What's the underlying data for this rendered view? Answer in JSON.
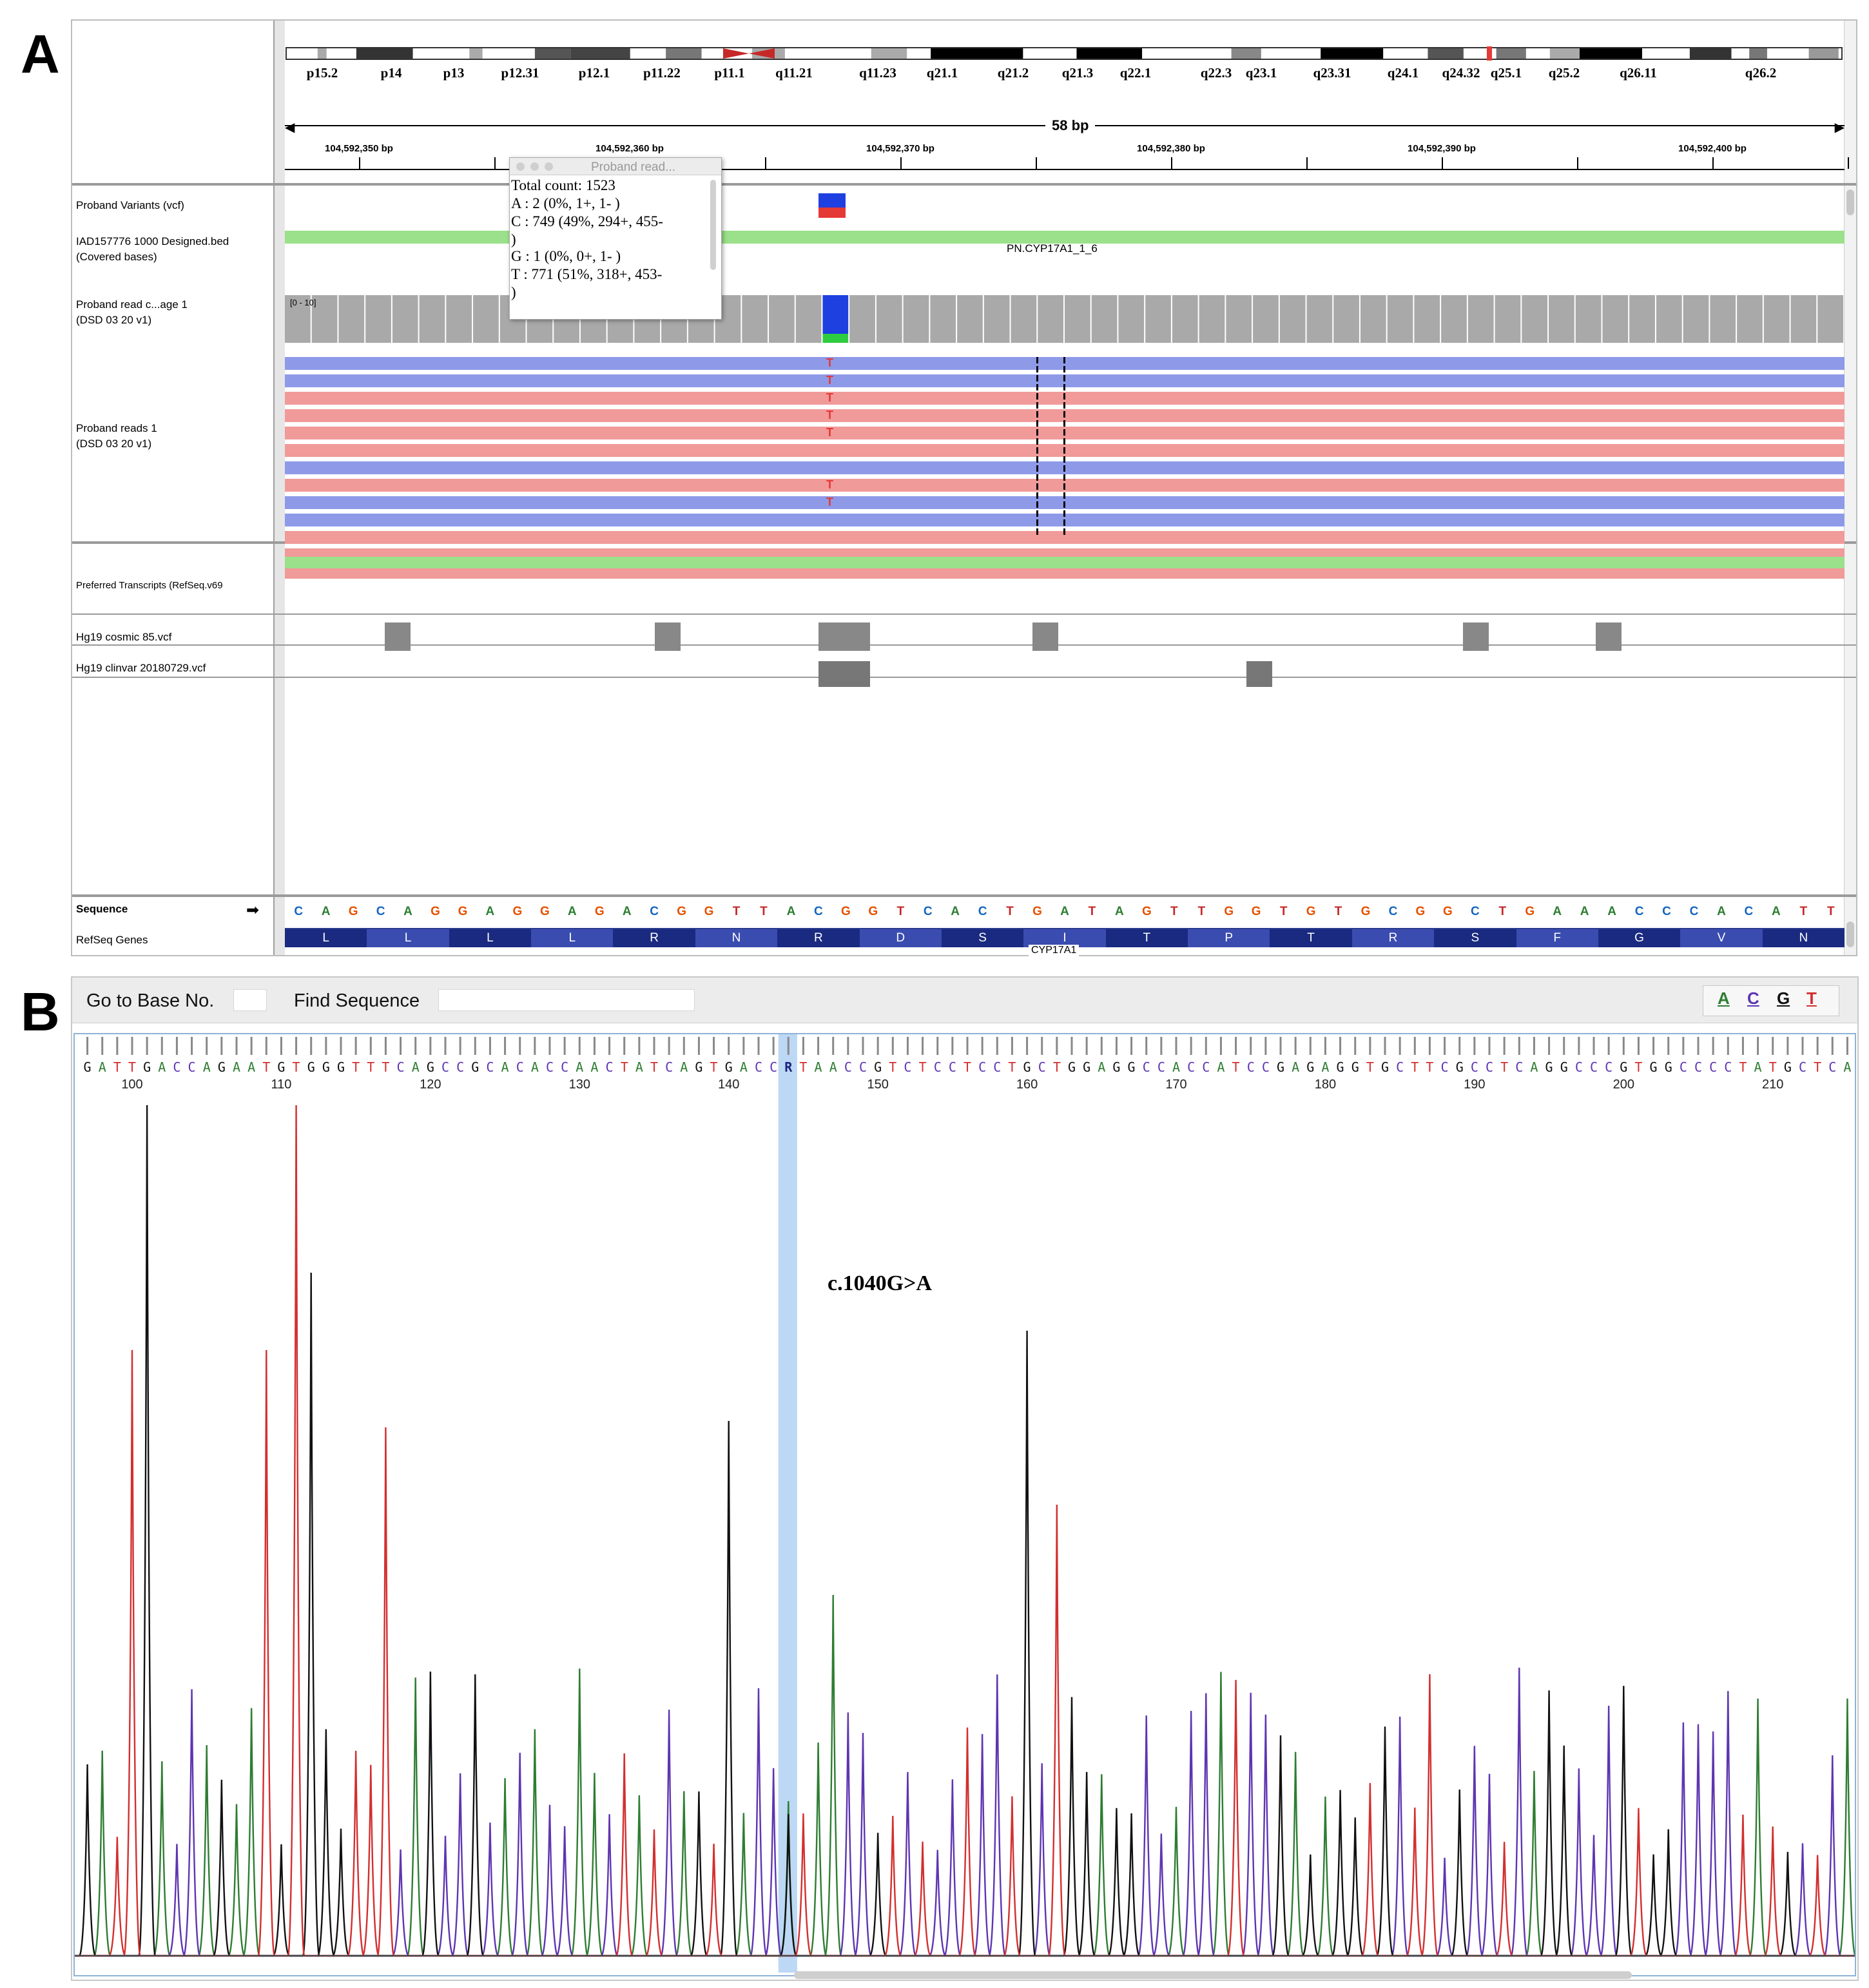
{
  "panel_a": {
    "letter": "A",
    "cytobands": [
      "p15.2",
      "p14",
      "p13",
      "p12.31",
      "p12.1",
      "p11.22",
      "p11.1",
      "q11.21",
      "q11.23",
      "q21.1",
      "q21.2",
      "q21.3",
      "q22.1",
      "q22.3",
      "q23.1",
      "q23.31",
      "q24.1",
      "q24.32",
      "q25.1",
      "q25.2",
      "q26.11",
      "q26.2"
    ],
    "span_label": "58 bp",
    "ruler_labels": [
      "104,592,350 bp",
      "104,592,360 bp",
      "104,592,370 bp",
      "104,592,380 bp",
      "104,592,390 bp",
      "104,592,400 bp"
    ],
    "tracks": {
      "variants": "Proband Variants (vcf)",
      "designed_bed_1": "IAD157776 1000 Designed.bed",
      "designed_bed_2": "(Covered bases)",
      "coverage_1": "Proband read c...age 1",
      "coverage_2": "(DSD 03 20 v1)",
      "reads_1": "Proband reads 1",
      "reads_2": "(DSD 03 20 v1)",
      "transcripts": "Preferred Transcripts (RefSeq.v69",
      "cosmic": "Hg19 cosmic 85.vcf",
      "clinvar": "Hg19 clinvar 20180729.vcf",
      "sequence": "Sequence",
      "refseq": "RefSeq Genes"
    },
    "bed_feature_label": "PN.CYP17A1_1_6",
    "coverage_range": "[0 - 10]",
    "tooltip": {
      "title": "Proband read...",
      "lines": [
        "Total count: 1523",
        "A : 2 (0%, 1+, 1- )",
        "C : 749 (49%, 294+, 455-",
        ")",
        "G : 1 (0%, 0+, 1- )",
        "T : 771 (51%, 318+, 453-",
        ")"
      ]
    },
    "mismatch_base": "T",
    "reference_sequence": "CAGCAGGAGGAGACGGTTACGGTCACTGATAGTTGGTGTGCGGCTGAAACCCACATT",
    "amino_acids": [
      "L",
      "L",
      "L",
      "L",
      "R",
      "N",
      "R",
      "D",
      "S",
      "I",
      "T",
      "P",
      "T",
      "R",
      "S",
      "F",
      "G",
      "V",
      "N"
    ],
    "gene_label": "CYP17A1",
    "base_colors": {
      "A": "#2e7d32",
      "C": "#1565c0",
      "G": "#e65100",
      "T": "#c62828"
    }
  },
  "panel_b": {
    "letter": "B",
    "go_to_base_label": "Go to Base No.",
    "find_sequence_label": "Find Sequence",
    "legend": [
      "A",
      "C",
      "G",
      "T"
    ],
    "legend_colors": {
      "A": "#2e7d32",
      "C": "#5e35b1",
      "G": "#111111",
      "T": "#d32f2f"
    },
    "base_calls": "GATTGACCAGAATGTGGGTTTCAGCCGCACACCAACTATCAGTGACCRTAACCGTCTCCTCCTGCTGGAGGCCACCATCCGAGAGGTGCTTCGCCTCAGGCCCGTGGCCCCTATGCTCA",
    "position_labels": [
      "100",
      "110",
      "120",
      "130",
      "140",
      "150",
      "160",
      "170",
      "180",
      "190",
      "200",
      "210"
    ],
    "annotation": "c.1040G>A"
  }
}
